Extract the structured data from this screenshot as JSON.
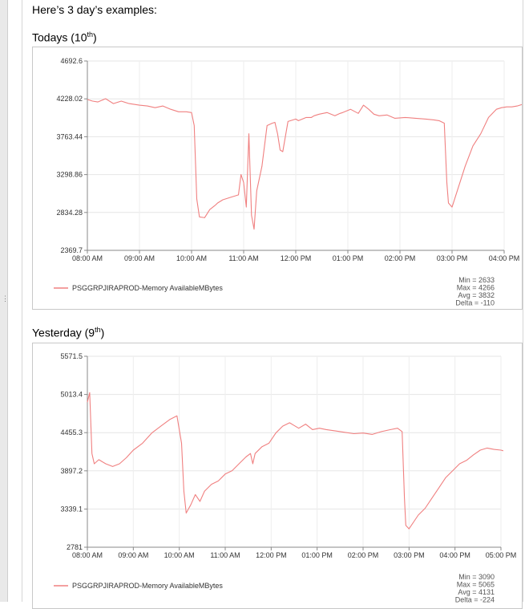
{
  "intro_text": "Here’s 3 day’s examples:",
  "sections": [
    {
      "heading_prefix": "Todays (10",
      "heading_sup": "th",
      "heading_suffix": ")"
    },
    {
      "heading_prefix": "Yesterday (9",
      "heading_sup": "th",
      "heading_suffix": ")"
    }
  ],
  "chart_data": [
    {
      "type": "line",
      "title": "",
      "xlabel": "",
      "ylabel": "",
      "series_color": "#f08080",
      "grid": true,
      "legend_position": "bottom-left",
      "ylim": [
        2369.7,
        4692.6
      ],
      "y_ticks": [
        "4692.6",
        "4228.02",
        "3763.44",
        "3298.86",
        "2834.28",
        "2369.7"
      ],
      "x_ticks": [
        "08:00 AM",
        "09:00 AM",
        "10:00 AM",
        "11:00 AM",
        "12:00 PM",
        "01:00 PM",
        "02:00 PM",
        "03:00 PM",
        "04:00 PM"
      ],
      "series": [
        {
          "name": "PSGGRPJIRAPROD-Memory AvailableMBytes",
          "x": [
            8.0,
            8.1,
            8.2,
            8.35,
            8.5,
            8.65,
            8.8,
            9.0,
            9.15,
            9.3,
            9.45,
            9.6,
            9.75,
            9.9,
            10.0,
            10.05,
            10.1,
            10.15,
            10.25,
            10.35,
            10.45,
            10.5,
            10.6,
            10.75,
            10.9,
            10.95,
            11.0,
            11.05,
            11.1,
            11.15,
            11.2,
            11.25,
            11.35,
            11.45,
            11.55,
            11.6,
            11.65,
            11.7,
            11.75,
            11.85,
            11.9,
            12.0,
            12.05,
            12.2,
            12.3,
            12.35,
            12.45,
            12.6,
            12.75,
            12.85,
            12.9,
            13.05,
            13.2,
            13.3,
            13.4,
            13.5,
            13.6,
            13.75,
            13.9,
            14.1,
            14.3,
            14.5,
            14.65,
            14.75,
            14.85,
            14.9,
            14.93,
            15.0,
            15.1,
            15.25,
            15.4,
            15.55,
            15.7,
            15.85,
            15.95,
            16.05,
            16.15,
            16.25,
            16.35,
            16.45,
            16.5
          ],
          "y": [
            4220,
            4200,
            4190,
            4230,
            4170,
            4200,
            4170,
            4150,
            4140,
            4120,
            4140,
            4100,
            4070,
            4070,
            4060,
            3900,
            3000,
            2780,
            2770,
            2870,
            2920,
            2950,
            2990,
            3020,
            3050,
            3300,
            3200,
            2900,
            3800,
            2800,
            2630,
            3100,
            3400,
            3900,
            3930,
            3940,
            3800,
            3600,
            3580,
            3950,
            3960,
            3980,
            3960,
            4000,
            4000,
            4020,
            4040,
            4060,
            4020,
            4050,
            4060,
            4100,
            4050,
            4150,
            4100,
            4040,
            4020,
            4030,
            3990,
            4000,
            3990,
            3980,
            3970,
            3960,
            3930,
            3200,
            2950,
            2900,
            3100,
            3400,
            3650,
            3800,
            4000,
            4100,
            4120,
            4130,
            4130,
            4140,
            4160,
            4080,
            4100
          ]
        }
      ],
      "stats": [
        "Min = 2633",
        "Max = 4266",
        "Avg = 3832",
        "Delta = -110"
      ]
    },
    {
      "type": "line",
      "title": "",
      "xlabel": "",
      "ylabel": "",
      "series_color": "#f08080",
      "grid": true,
      "legend_position": "bottom-left",
      "ylim": [
        2781,
        5571.5
      ],
      "y_ticks": [
        "5571.5",
        "5013.4",
        "4455.3",
        "3897.2",
        "3339.1",
        "2781"
      ],
      "x_ticks": [
        "08:00 AM",
        "09:00 AM",
        "10:00 AM",
        "11:00 AM",
        "12:00 PM",
        "01:00 PM",
        "02:00 PM",
        "03:00 PM",
        "04:00 PM",
        "05:00 PM"
      ],
      "series": [
        {
          "name": "PSGGRPJIRAPROD-Memory AvailableMBytes",
          "x": [
            8.0,
            8.05,
            8.1,
            8.15,
            8.25,
            8.4,
            8.55,
            8.7,
            8.85,
            9.0,
            9.2,
            9.4,
            9.6,
            9.8,
            9.95,
            10.05,
            10.1,
            10.15,
            10.25,
            10.35,
            10.45,
            10.55,
            10.7,
            10.85,
            11.0,
            11.15,
            11.3,
            11.45,
            11.55,
            11.6,
            11.65,
            11.8,
            11.95,
            12.1,
            12.25,
            12.4,
            12.5,
            12.6,
            12.75,
            12.9,
            13.05,
            13.2,
            13.4,
            13.6,
            13.8,
            14.0,
            14.2,
            14.4,
            14.6,
            14.75,
            14.85,
            14.9,
            14.93,
            15.0,
            15.1,
            15.2,
            15.35,
            15.5,
            15.65,
            15.8,
            15.95,
            16.1,
            16.25,
            16.4,
            16.55,
            16.7,
            16.85,
            17.0,
            17.05
          ],
          "y": [
            4900,
            5040,
            4150,
            4000,
            4060,
            4000,
            3960,
            4000,
            4090,
            4200,
            4300,
            4450,
            4550,
            4650,
            4700,
            4300,
            3600,
            3280,
            3400,
            3550,
            3450,
            3600,
            3700,
            3750,
            3850,
            3900,
            4000,
            4100,
            4150,
            4000,
            4150,
            4250,
            4300,
            4450,
            4550,
            4600,
            4560,
            4520,
            4580,
            4500,
            4520,
            4500,
            4480,
            4460,
            4440,
            4450,
            4430,
            4470,
            4500,
            4520,
            4470,
            3500,
            3100,
            3050,
            3150,
            3250,
            3350,
            3500,
            3650,
            3800,
            3900,
            4000,
            4050,
            4130,
            4200,
            4230,
            4210,
            4200,
            4190
          ]
        }
      ],
      "stats": [
        "Min = 3090",
        "Max = 5065",
        "Avg = 4131",
        "Delta = -224"
      ]
    }
  ]
}
